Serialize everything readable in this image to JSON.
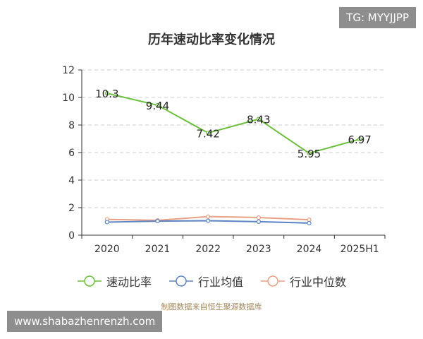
{
  "watermark": "TG: MYYJJPP",
  "site_badge": "www.shabazhenrenzh.com",
  "source_note": "制图数据来自恒生聚源数据库",
  "chart_data": {
    "type": "line",
    "title": "历年速动比率变化情况",
    "categories": [
      "2020",
      "2021",
      "2022",
      "2023",
      "2024",
      "2025H1"
    ],
    "ylim": [
      0,
      12
    ],
    "yticks": [
      0,
      2,
      4,
      6,
      8,
      10,
      12
    ],
    "grid": true,
    "legend_position": "bottom",
    "series": [
      {
        "name": "速动比率",
        "color": "#6cbf3f",
        "values": [
          10.3,
          9.44,
          7.42,
          8.43,
          5.95,
          6.97
        ],
        "labels": [
          "10.3",
          "9.44",
          "7.42",
          "8.43",
          "5.95",
          "6.97"
        ]
      },
      {
        "name": "行业均值",
        "color": "#5b84c4",
        "values": [
          0.95,
          1.02,
          1.05,
          0.98,
          0.88,
          null
        ]
      },
      {
        "name": "行业中位数",
        "color": "#e8a184",
        "values": [
          1.15,
          1.08,
          1.35,
          1.28,
          1.12,
          null
        ]
      }
    ]
  }
}
